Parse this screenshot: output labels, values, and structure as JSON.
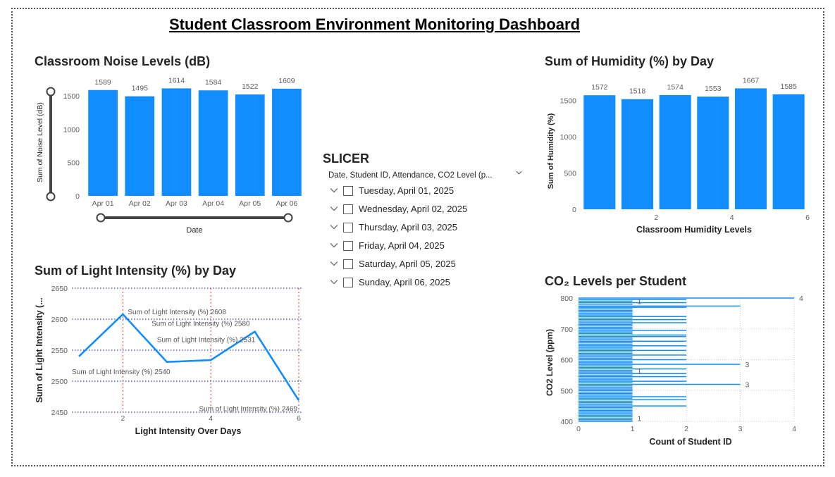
{
  "dashboard": {
    "title": "Student Classroom Environment Monitoring Dashboard"
  },
  "colors": {
    "bar": "#118DFF",
    "text": "#252423",
    "axis": "#605e5c",
    "grid": "#c8c8c8",
    "ref_blue": "#3a3ab0",
    "ref_red": "#c0392b"
  },
  "noise": {
    "title": "Classroom Noise Levels (dB)",
    "chart_data": {
      "type": "bar",
      "title": "Classroom Noise Levels (dB)",
      "categories": [
        "Apr 01",
        "Apr 02",
        "Apr 03",
        "Apr 04",
        "Apr 05",
        "Apr 06"
      ],
      "values": [
        1589,
        1495,
        1614,
        1584,
        1522,
        1609
      ],
      "data_labels": [
        "1589",
        "1495",
        "1614",
        "1584",
        "1522",
        "1609"
      ],
      "xlabel": "Date",
      "ylabel": "Sum of Noise Level (dB)",
      "ylim": [
        0,
        1650
      ],
      "yticks": [
        0,
        500,
        1000,
        1500
      ],
      "ytick_labels": [
        "0",
        "500",
        "1000",
        "1500"
      ]
    }
  },
  "humidity": {
    "title": "Sum of Humidity (%) by Day",
    "chart_data": {
      "type": "bar",
      "title": "Sum of Humidity (%) by Day",
      "x": [
        1,
        2,
        3,
        4,
        5,
        6
      ],
      "values": [
        1572,
        1518,
        1574,
        1553,
        1667,
        1585
      ],
      "data_labels": [
        "1572",
        "1518",
        "1574",
        "1553",
        "1667",
        "1585"
      ],
      "xticks": [
        2,
        4,
        6
      ],
      "xtick_labels": [
        "2",
        "4",
        "6"
      ],
      "xlabel": "Classroom Humidity Levels",
      "ylabel": "Sum of Humidity (%)",
      "ylim": [
        0,
        1700
      ],
      "yticks": [
        0,
        500,
        1000,
        1500
      ],
      "ytick_labels": [
        "0",
        "500",
        "1000",
        "1500"
      ]
    }
  },
  "light": {
    "title": "Sum of Light Intensity (%) by Day",
    "chart_data": {
      "type": "line",
      "title": "Sum of Light Intensity (%) by Day",
      "x": [
        1,
        2,
        3,
        4,
        5,
        6
      ],
      "y": [
        2540,
        2608,
        2531,
        2534,
        2580,
        2469
      ],
      "point_labels": [
        "Sum of Light Intensity (%) 2540",
        "Sum of Light Intensity (%) 2608",
        "Sum of Light Intensity (%) 2531",
        "",
        "Sum of Light Intensity (%) 2580",
        "Sum of Light Intensity (%) 2469"
      ],
      "xticks": [
        2,
        4,
        6
      ],
      "xtick_labels": [
        "2",
        "4",
        "6"
      ],
      "xlim": [
        1,
        6
      ],
      "xlabel": "Light Intensity Over Days",
      "ylabel": "Sum of Light Intensity (...",
      "ylim": [
        2450,
        2650
      ],
      "yticks": [
        2450,
        2500,
        2550,
        2600,
        2650
      ],
      "ytick_labels": [
        "2450",
        "2500",
        "2550",
        "2600",
        "2650"
      ],
      "grid": true
    }
  },
  "co2": {
    "title": "CO₂ Levels per Student",
    "chart_data": {
      "type": "bar",
      "orientation": "horizontal",
      "title": "CO₂ Levels per Student",
      "xlabel": "Count of Student ID",
      "ylabel": "CO2 Level (ppm)",
      "xlim": [
        0,
        4
      ],
      "xticks": [
        0,
        1,
        2,
        3,
        4
      ],
      "xtick_labels": [
        "0",
        "1",
        "2",
        "3",
        "4"
      ],
      "ylim": [
        400,
        800
      ],
      "yticks": [
        400,
        500,
        600,
        700,
        800
      ],
      "ytick_labels": [
        "400",
        "500",
        "600",
        "700",
        "800"
      ],
      "bars": [
        {
          "co2": 800,
          "count": 4
        },
        {
          "co2": 795,
          "count": 2
        },
        {
          "co2": 790,
          "count": 1
        },
        {
          "co2": 785,
          "count": 2
        },
        {
          "co2": 780,
          "count": 1
        },
        {
          "co2": 774,
          "count": 3
        },
        {
          "co2": 770,
          "count": 2
        },
        {
          "co2": 765,
          "count": 1
        },
        {
          "co2": 760,
          "count": 1
        },
        {
          "co2": 755,
          "count": 1
        },
        {
          "co2": 750,
          "count": 1
        },
        {
          "co2": 745,
          "count": 1
        },
        {
          "co2": 740,
          "count": 2
        },
        {
          "co2": 735,
          "count": 1
        },
        {
          "co2": 730,
          "count": 2
        },
        {
          "co2": 725,
          "count": 1
        },
        {
          "co2": 720,
          "count": 2
        },
        {
          "co2": 715,
          "count": 1
        },
        {
          "co2": 710,
          "count": 1
        },
        {
          "co2": 705,
          "count": 1
        },
        {
          "co2": 700,
          "count": 1
        },
        {
          "co2": 695,
          "count": 2
        },
        {
          "co2": 690,
          "count": 1
        },
        {
          "co2": 685,
          "count": 1
        },
        {
          "co2": 680,
          "count": 2
        },
        {
          "co2": 675,
          "count": 2
        },
        {
          "co2": 670,
          "count": 1
        },
        {
          "co2": 665,
          "count": 1
        },
        {
          "co2": 660,
          "count": 2
        },
        {
          "co2": 655,
          "count": 1
        },
        {
          "co2": 650,
          "count": 1
        },
        {
          "co2": 645,
          "count": 2
        },
        {
          "co2": 640,
          "count": 1
        },
        {
          "co2": 635,
          "count": 1
        },
        {
          "co2": 630,
          "count": 2
        },
        {
          "co2": 625,
          "count": 1
        },
        {
          "co2": 620,
          "count": 1
        },
        {
          "co2": 615,
          "count": 2
        },
        {
          "co2": 610,
          "count": 1
        },
        {
          "co2": 605,
          "count": 1
        },
        {
          "co2": 600,
          "count": 2
        },
        {
          "co2": 595,
          "count": 1
        },
        {
          "co2": 590,
          "count": 1
        },
        {
          "co2": 585,
          "count": 3
        },
        {
          "co2": 580,
          "count": 1
        },
        {
          "co2": 575,
          "count": 1
        },
        {
          "co2": 570,
          "count": 2
        },
        {
          "co2": 565,
          "count": 1
        },
        {
          "co2": 560,
          "count": 1
        },
        {
          "co2": 555,
          "count": 2
        },
        {
          "co2": 550,
          "count": 1
        },
        {
          "co2": 545,
          "count": 2
        },
        {
          "co2": 540,
          "count": 1
        },
        {
          "co2": 535,
          "count": 1
        },
        {
          "co2": 530,
          "count": 2
        },
        {
          "co2": 525,
          "count": 1
        },
        {
          "co2": 520,
          "count": 3
        },
        {
          "co2": 515,
          "count": 1
        },
        {
          "co2": 510,
          "count": 1
        },
        {
          "co2": 505,
          "count": 1
        },
        {
          "co2": 500,
          "count": 1
        },
        {
          "co2": 495,
          "count": 1
        },
        {
          "co2": 490,
          "count": 1
        },
        {
          "co2": 485,
          "count": 1
        },
        {
          "co2": 480,
          "count": 2
        },
        {
          "co2": 475,
          "count": 1
        },
        {
          "co2": 470,
          "count": 2
        },
        {
          "co2": 465,
          "count": 1
        },
        {
          "co2": 460,
          "count": 1
        },
        {
          "co2": 455,
          "count": 1
        },
        {
          "co2": 450,
          "count": 2
        },
        {
          "co2": 445,
          "count": 1
        },
        {
          "co2": 440,
          "count": 1
        },
        {
          "co2": 435,
          "count": 1
        },
        {
          "co2": 430,
          "count": 1
        },
        {
          "co2": 425,
          "count": 1
        },
        {
          "co2": 420,
          "count": 1
        },
        {
          "co2": 415,
          "count": 1
        },
        {
          "co2": 410,
          "count": 1
        },
        {
          "co2": 405,
          "count": 1
        },
        {
          "co2": 400,
          "count": 1
        }
      ],
      "annotations": [
        {
          "co2": 800,
          "count": 4,
          "text": "4"
        },
        {
          "co2": 790,
          "count": 1,
          "text": "1"
        },
        {
          "co2": 585,
          "count": 3,
          "text": "3"
        },
        {
          "co2": 565,
          "count": 1,
          "text": "1"
        },
        {
          "co2": 520,
          "count": 3,
          "text": "3"
        },
        {
          "co2": 410,
          "count": 1,
          "text": "1"
        }
      ],
      "grid": true
    }
  },
  "slicer": {
    "title": "SLICER",
    "header": "Date, Student ID, Attendance, CO2 Level (p...",
    "items": [
      {
        "label": "Tuesday, April 01, 2025"
      },
      {
        "label": "Wednesday, April 02, 2025"
      },
      {
        "label": "Thursday, April 03, 2025"
      },
      {
        "label": "Friday, April 04, 2025"
      },
      {
        "label": "Saturday, April 05, 2025"
      },
      {
        "label": "Sunday, April 06, 2025"
      }
    ]
  }
}
